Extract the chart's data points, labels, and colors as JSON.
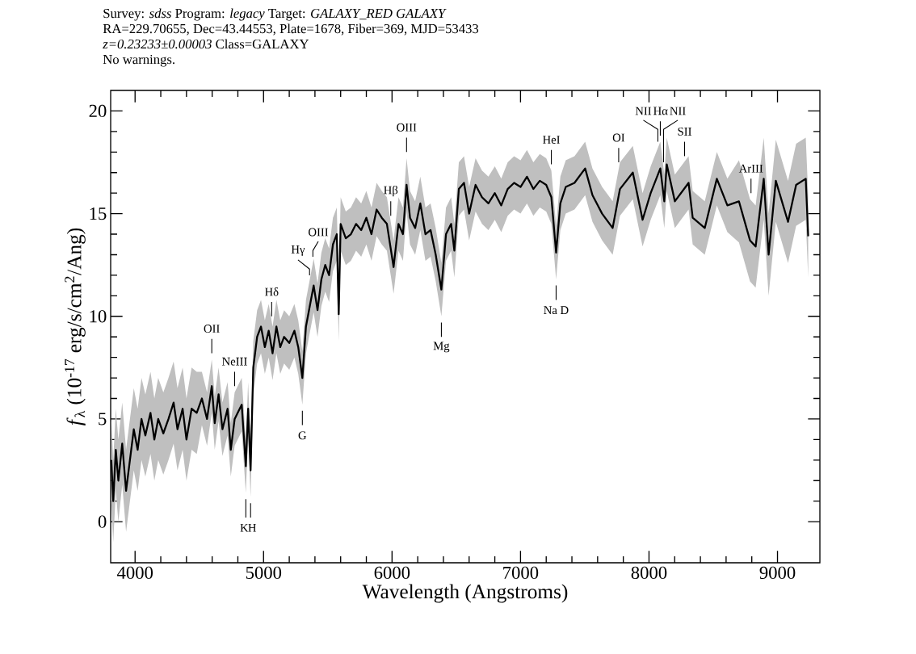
{
  "chart_data": {
    "type": "line",
    "title": "Survey: *sdss* Program: *legacy* Target: *GALAXY_RED GALAXY*",
    "subtitle": "RA=229.70655, Dec=43.44553, Plate=1678, Fiber=369, MJD=53433",
    "xlabel": "Wavelength (Angstroms)",
    "ylabel": "*f*$_{λ}$ (10$^{-17}$ erg/s/cm$^{2}$/Ang)",
    "xlim": [
      3810,
      9330
    ],
    "ylim": [
      -2,
      21
    ],
    "xticks": [
      4000,
      5000,
      6000,
      7000,
      8000,
      9000
    ],
    "yticks": [
      0,
      5,
      10,
      15,
      20
    ],
    "grid": false,
    "annotations": [
      "*z=0.23233±0.00003* Class=GALAXY",
      "No warnings.",
      {
        "text": "OII",
        "x": 4597,
        "y": 7.9
      },
      {
        "text": "NeIII",
        "x": 4775,
        "y": 6.3
      },
      {
        "text": "K",
        "x": 4862,
        "y": 1.4
      },
      {
        "text": "H",
        "x": 4899,
        "y": 1.2
      },
      {
        "text": "Hδ",
        "x": 5063,
        "y": 9.7
      },
      {
        "text": "G",
        "x": 5302,
        "y": 5.7
      },
      {
        "text": "Hγ",
        "x": 5358,
        "y": 11.7
      },
      {
        "text": "OIII",
        "x": 5384,
        "y": 12.6
      },
      {
        "text": "Hβ",
        "x": 5990,
        "y": 14.6
      },
      {
        "text": "OIII",
        "x": 6113,
        "y": 17.7
      },
      {
        "text": "Mg",
        "x": 6384,
        "y": 10.0
      },
      {
        "text": "HeI",
        "x": 7240,
        "y": 17.1
      },
      {
        "text": "Na D",
        "x": 7277,
        "y": 11.8
      },
      {
        "text": "OI",
        "x": 7764,
        "y": 17.2
      },
      {
        "text": "NII",
        "x": 8069,
        "y": 18.2
      },
      {
        "text": "Hα",
        "x": 8088,
        "y": 18.5
      },
      {
        "text": "NII",
        "x": 8113,
        "y": 17.2
      },
      {
        "text": "SII",
        "x": 8277,
        "y": 17.5
      },
      {
        "text": "ArIII",
        "x": 8794,
        "y": 15.7
      }
    ],
    "series": [
      {
        "color": "#000000",
        "x": [
          3815,
          3830,
          3850,
          3870,
          3900,
          3930,
          3960,
          3990,
          4020,
          4050,
          4080,
          4120,
          4150,
          4180,
          4220,
          4260,
          4300,
          4330,
          4370,
          4400,
          4440,
          4480,
          4520,
          4560,
          4597,
          4620,
          4650,
          4680,
          4720,
          4745,
          4775,
          4830,
          4862,
          4880,
          4899,
          4920,
          4950,
          4980,
          5010,
          5040,
          5070,
          5100,
          5130,
          5160,
          5200,
          5240,
          5270,
          5302,
          5330,
          5360,
          5390,
          5420,
          5450,
          5480,
          5510,
          5540,
          5570,
          5585,
          5600,
          5640,
          5680,
          5720,
          5760,
          5800,
          5840,
          5880,
          5920,
          5960,
          6012,
          6050,
          6085,
          6113,
          6140,
          6180,
          6220,
          6260,
          6300,
          6340,
          6384,
          6420,
          6460,
          6485,
          6520,
          6560,
          6600,
          6650,
          6700,
          6750,
          6800,
          6850,
          6900,
          6950,
          7000,
          7050,
          7100,
          7150,
          7200,
          7240,
          7277,
          7310,
          7352,
          7420,
          7503,
          7560,
          7635,
          7717,
          7774,
          7874,
          7950,
          8013,
          8088,
          8119,
          8138,
          8201,
          8308,
          8340,
          8434,
          8528,
          8610,
          8700,
          8786,
          8830,
          8893,
          8931,
          8987,
          9082,
          9145,
          9220,
          9239
        ],
        "values": [
          3.0,
          1.0,
          3.5,
          2.0,
          3.8,
          1.5,
          3.0,
          4.5,
          3.5,
          5.0,
          4.2,
          5.3,
          4.0,
          5.0,
          4.3,
          5.0,
          5.8,
          4.5,
          5.5,
          4.0,
          5.5,
          5.3,
          6.0,
          5.0,
          6.6,
          4.8,
          6.2,
          4.5,
          5.5,
          3.5,
          5.0,
          5.7,
          2.7,
          5.5,
          2.5,
          7.5,
          9.0,
          9.5,
          8.5,
          9.3,
          8.2,
          9.5,
          8.5,
          9.0,
          8.7,
          9.3,
          8.5,
          7.0,
          9.5,
          10.5,
          11.5,
          10.3,
          11.8,
          12.5,
          12.0,
          13.5,
          14.0,
          10.1,
          14.5,
          13.8,
          14.0,
          14.5,
          14.2,
          14.8,
          14.0,
          15.2,
          14.8,
          14.5,
          12.4,
          14.5,
          14.0,
          16.4,
          14.8,
          14.3,
          15.5,
          14.0,
          14.2,
          13.0,
          11.3,
          14.0,
          14.5,
          13.2,
          16.2,
          16.5,
          15.0,
          16.4,
          15.8,
          15.5,
          16.0,
          15.4,
          16.2,
          16.5,
          16.3,
          16.8,
          16.2,
          16.6,
          16.4,
          15.8,
          13.1,
          15.5,
          16.3,
          16.5,
          17.2,
          15.9,
          15.0,
          14.3,
          16.2,
          17.0,
          14.7,
          16.0,
          17.2,
          15.6,
          17.4,
          15.6,
          16.5,
          14.8,
          14.3,
          16.7,
          15.4,
          15.6,
          13.7,
          13.4,
          16.7,
          13.0,
          16.6,
          14.6,
          16.4,
          16.7,
          13.9
        ],
        "lower": [
          1.0,
          -1.0,
          1.5,
          0.0,
          1.8,
          -0.5,
          1.0,
          2.5,
          1.5,
          3.0,
          2.2,
          3.3,
          2.0,
          3.0,
          2.3,
          3.0,
          3.8,
          2.5,
          3.5,
          2.0,
          3.5,
          3.3,
          4.7,
          3.7,
          5.3,
          3.5,
          4.9,
          3.2,
          4.2,
          2.2,
          3.7,
          4.4,
          1.4,
          4.2,
          1.2,
          6.2,
          7.7,
          8.2,
          7.2,
          8.0,
          6.9,
          8.2,
          7.2,
          7.7,
          7.4,
          8.0,
          7.2,
          5.7,
          8.2,
          9.2,
          10.2,
          9.0,
          10.5,
          11.2,
          10.7,
          12.2,
          12.7,
          8.8,
          13.2,
          12.5,
          12.7,
          13.2,
          12.9,
          13.5,
          12.7,
          13.9,
          13.5,
          13.2,
          11.1,
          13.2,
          12.7,
          15.1,
          13.5,
          13.0,
          14.2,
          12.7,
          12.9,
          11.7,
          10.0,
          12.7,
          13.2,
          11.9,
          14.9,
          15.2,
          13.7,
          15.1,
          14.5,
          14.2,
          14.7,
          14.1,
          14.9,
          15.2,
          15.0,
          15.5,
          14.9,
          15.3,
          15.1,
          14.5,
          11.8,
          14.2,
          15.0,
          15.2,
          15.9,
          14.6,
          13.7,
          13.0,
          14.9,
          15.7,
          13.4,
          14.7,
          15.9,
          14.3,
          16.1,
          14.3,
          15.2,
          13.5,
          13.0,
          15.4,
          14.1,
          13.6,
          11.7,
          11.4,
          14.7,
          11.0,
          14.6,
          12.6,
          14.4,
          14.7,
          11.9
        ],
        "upper": [
          5.0,
          3.0,
          5.5,
          4.0,
          5.8,
          3.5,
          5.0,
          6.5,
          5.5,
          7.0,
          6.2,
          7.3,
          6.0,
          7.0,
          6.3,
          7.0,
          7.8,
          6.5,
          7.5,
          6.0,
          7.5,
          7.3,
          7.3,
          6.3,
          7.9,
          6.1,
          7.5,
          5.8,
          6.8,
          4.8,
          6.3,
          7.0,
          4.0,
          6.8,
          3.8,
          8.8,
          10.3,
          10.8,
          9.8,
          10.6,
          9.5,
          10.8,
          9.8,
          10.3,
          10.0,
          10.6,
          9.8,
          8.3,
          10.8,
          11.8,
          12.8,
          11.6,
          13.1,
          13.8,
          13.3,
          14.8,
          15.3,
          11.4,
          15.8,
          15.1,
          15.3,
          15.8,
          15.5,
          16.1,
          15.3,
          16.5,
          16.1,
          15.8,
          13.7,
          15.8,
          15.3,
          17.7,
          16.1,
          15.6,
          16.8,
          15.3,
          15.5,
          14.3,
          12.6,
          15.3,
          15.8,
          14.5,
          17.5,
          17.8,
          16.3,
          17.7,
          17.1,
          16.8,
          17.3,
          16.7,
          17.5,
          17.8,
          17.6,
          18.1,
          17.5,
          17.9,
          17.7,
          17.1,
          14.4,
          16.8,
          17.6,
          17.8,
          18.5,
          17.2,
          16.3,
          15.6,
          17.5,
          18.3,
          16.0,
          17.3,
          18.5,
          16.9,
          18.7,
          16.9,
          17.8,
          16.1,
          15.6,
          18.0,
          16.7,
          17.6,
          15.7,
          15.4,
          18.7,
          15.0,
          18.6,
          16.6,
          18.4,
          18.7,
          15.9
        ]
      }
    ]
  }
}
